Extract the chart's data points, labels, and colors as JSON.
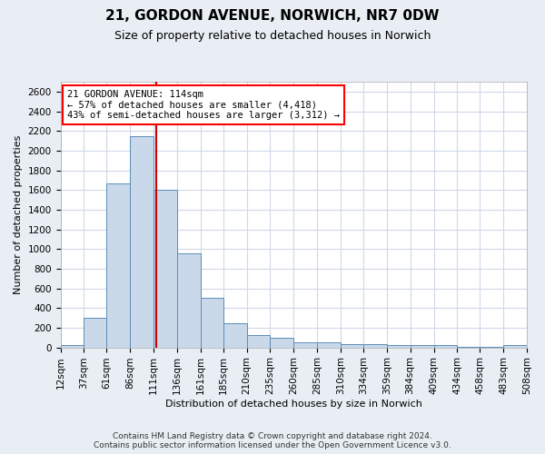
{
  "title": "21, GORDON AVENUE, NORWICH, NR7 0DW",
  "subtitle": "Size of property relative to detached houses in Norwich",
  "xlabel": "Distribution of detached houses by size in Norwich",
  "ylabel": "Number of detached properties",
  "footer_line1": "Contains HM Land Registry data © Crown copyright and database right 2024.",
  "footer_line2": "Contains public sector information licensed under the Open Government Licence v3.0.",
  "annotation_line1": "21 GORDON AVENUE: 114sqm",
  "annotation_line2": "← 57% of detached houses are smaller (4,418)",
  "annotation_line3": "43% of semi-detached houses are larger (3,312) →",
  "bar_color": "#c9d9ea",
  "bar_edge_color": "#5b8db8",
  "grid_color": "#d0d8e8",
  "marker_line_color": "#cc0000",
  "marker_value": 114,
  "bin_edges": [
    12,
    37,
    61,
    86,
    111,
    136,
    161,
    185,
    210,
    235,
    260,
    285,
    310,
    334,
    359,
    384,
    409,
    434,
    458,
    483,
    508
  ],
  "bar_heights": [
    25,
    300,
    1670,
    2150,
    1600,
    960,
    500,
    250,
    125,
    100,
    50,
    50,
    30,
    30,
    20,
    20,
    20,
    10,
    10,
    25
  ],
  "ylim": [
    0,
    2700
  ],
  "yticks": [
    0,
    200,
    400,
    600,
    800,
    1000,
    1200,
    1400,
    1600,
    1800,
    2000,
    2200,
    2400,
    2600
  ],
  "background_color": "#e8eef4",
  "plot_background_color": "#ffffff",
  "title_fontsize": 11,
  "subtitle_fontsize": 9,
  "ylabel_fontsize": 8,
  "xlabel_fontsize": 8,
  "tick_fontsize": 7.5,
  "annotation_fontsize": 7.5,
  "footer_fontsize": 6.5
}
